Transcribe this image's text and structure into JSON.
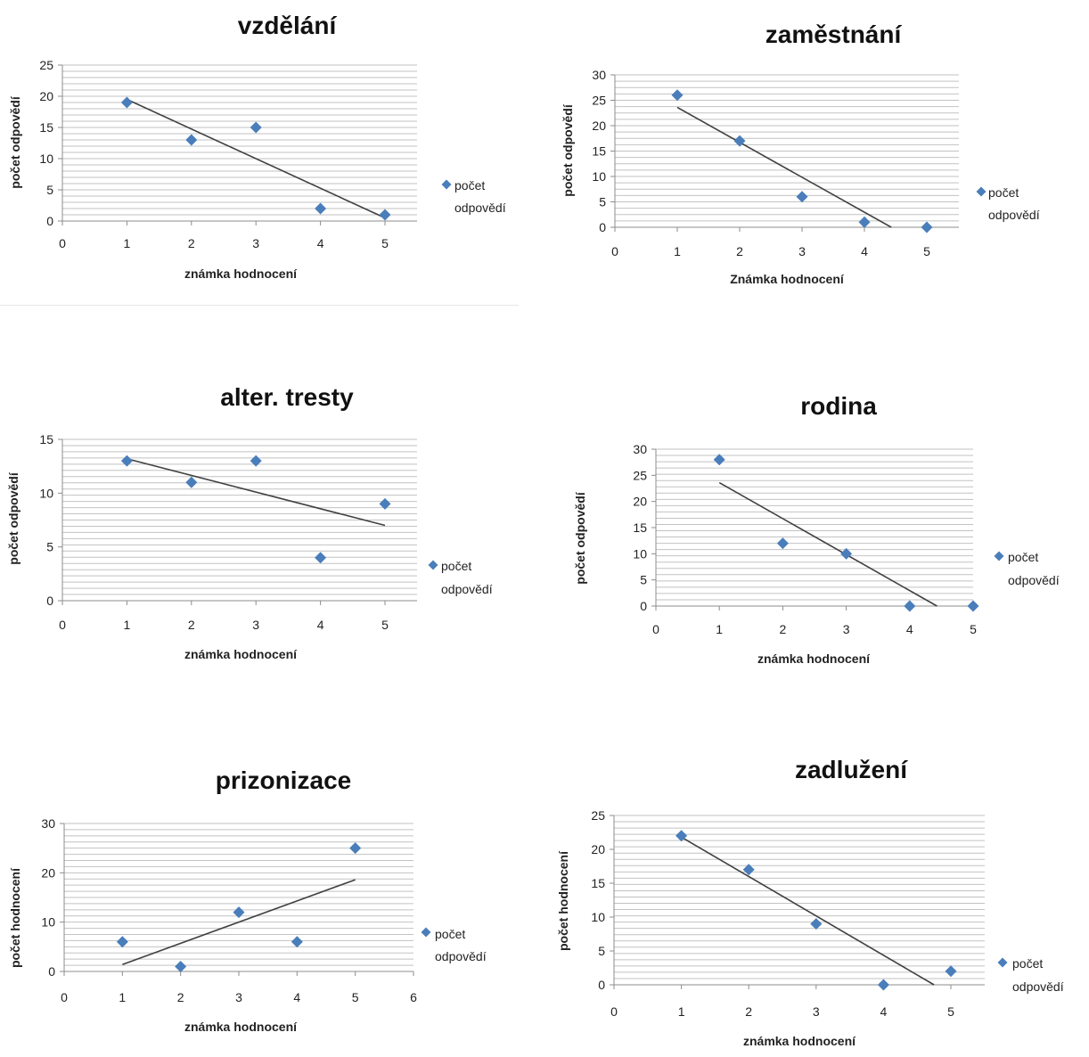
{
  "colors": {
    "marker": "#4a7ebb",
    "trend": "#404040",
    "grid": "#c2c2c2"
  },
  "chart_data": [
    {
      "type": "scatter",
      "title": "vzdělání",
      "xlabel": "známka hodnocení",
      "ylabel": "počet odpovědí",
      "xlim": [
        0,
        5
      ],
      "ylim": [
        0,
        25
      ],
      "x_ticks": [
        0,
        1,
        2,
        3,
        4,
        5
      ],
      "y_ticks": [
        0,
        5,
        10,
        15,
        20,
        25
      ],
      "legend": "right",
      "series": [
        {
          "name": "počet odpovědí",
          "x": [
            1,
            2,
            3,
            4,
            5
          ],
          "y": [
            19,
            13,
            15,
            2,
            1
          ]
        }
      ],
      "trendline": {
        "x": [
          1,
          5
        ],
        "y": [
          19.5,
          0.5
        ]
      }
    },
    {
      "type": "scatter",
      "title": "zaměstnání",
      "xlabel": "Známka hodnocení",
      "ylabel": "počet odpovědí",
      "xlim": [
        0,
        5.5
      ],
      "ylim": [
        0,
        30
      ],
      "x_ticks": [
        0,
        1,
        2,
        3,
        4,
        5
      ],
      "y_ticks": [
        0,
        5,
        10,
        15,
        20,
        25,
        30
      ],
      "legend": "right",
      "series": [
        {
          "name": "počet odpovědí",
          "x": [
            1,
            2,
            3,
            4,
            5
          ],
          "y": [
            26,
            17,
            6,
            1,
            0
          ]
        }
      ],
      "trendline": {
        "x": [
          1,
          4.43
        ],
        "y": [
          23.6,
          0
        ]
      }
    },
    {
      "type": "scatter",
      "title": "alter. tresty",
      "xlabel": "známka hodnocení",
      "ylabel": "počet odpovědí",
      "xlim": [
        0,
        5.5
      ],
      "ylim": [
        0,
        15
      ],
      "x_ticks": [
        0,
        1,
        2,
        3,
        4,
        5
      ],
      "y_ticks": [
        0,
        5,
        10,
        15
      ],
      "legend": "right",
      "series": [
        {
          "name": "počet odpovědí",
          "x": [
            1,
            2,
            3,
            4,
            5
          ],
          "y": [
            13,
            11,
            13,
            4,
            9
          ]
        }
      ],
      "trendline": {
        "x": [
          1,
          5
        ],
        "y": [
          13.2,
          7.0
        ]
      }
    },
    {
      "type": "scatter",
      "title": "rodina",
      "xlabel": "známka hodnocení",
      "ylabel": "počet  odpovědí",
      "xlim": [
        0,
        5
      ],
      "ylim": [
        0,
        30
      ],
      "x_ticks": [
        0,
        1,
        2,
        3,
        4,
        5
      ],
      "y_ticks": [
        0,
        5,
        10,
        15,
        20,
        25,
        30
      ],
      "legend": "right",
      "series": [
        {
          "name": "počet odpovědí",
          "x": [
            1,
            2,
            3,
            4,
            5
          ],
          "y": [
            28,
            12,
            10,
            0,
            0
          ]
        }
      ],
      "trendline": {
        "x": [
          1,
          4.43
        ],
        "y": [
          23.6,
          0
        ]
      }
    },
    {
      "type": "scatter",
      "title": "prizonizace",
      "xlabel": "známka hodnocení",
      "ylabel": "počet hodnocení",
      "xlim": [
        0,
        6
      ],
      "ylim": [
        0,
        30
      ],
      "x_ticks": [
        0,
        1,
        2,
        3,
        4,
        5,
        6
      ],
      "y_ticks": [
        0,
        10,
        20,
        30
      ],
      "legend": "right",
      "series": [
        {
          "name": "počet odpovědí",
          "x": [
            1,
            2,
            3,
            4,
            5
          ],
          "y": [
            6,
            1,
            12,
            6,
            25
          ]
        }
      ],
      "trendline": {
        "x": [
          1,
          5
        ],
        "y": [
          1.4,
          18.6
        ]
      }
    },
    {
      "type": "scatter",
      "title": "zadlužení",
      "xlabel": "známka hodnocení",
      "ylabel": "počet hodnocení",
      "xlim": [
        0,
        5.5
      ],
      "ylim": [
        0,
        25
      ],
      "x_ticks": [
        0,
        1,
        2,
        3,
        4,
        5
      ],
      "y_ticks": [
        0,
        5,
        10,
        15,
        20,
        25
      ],
      "legend": "right",
      "series": [
        {
          "name": "počet odpovědí",
          "x": [
            1,
            2,
            3,
            4,
            5
          ],
          "y": [
            22,
            17,
            9,
            0,
            2
          ]
        }
      ],
      "trendline": {
        "x": [
          1,
          4.75
        ],
        "y": [
          21.8,
          0
        ]
      }
    }
  ]
}
